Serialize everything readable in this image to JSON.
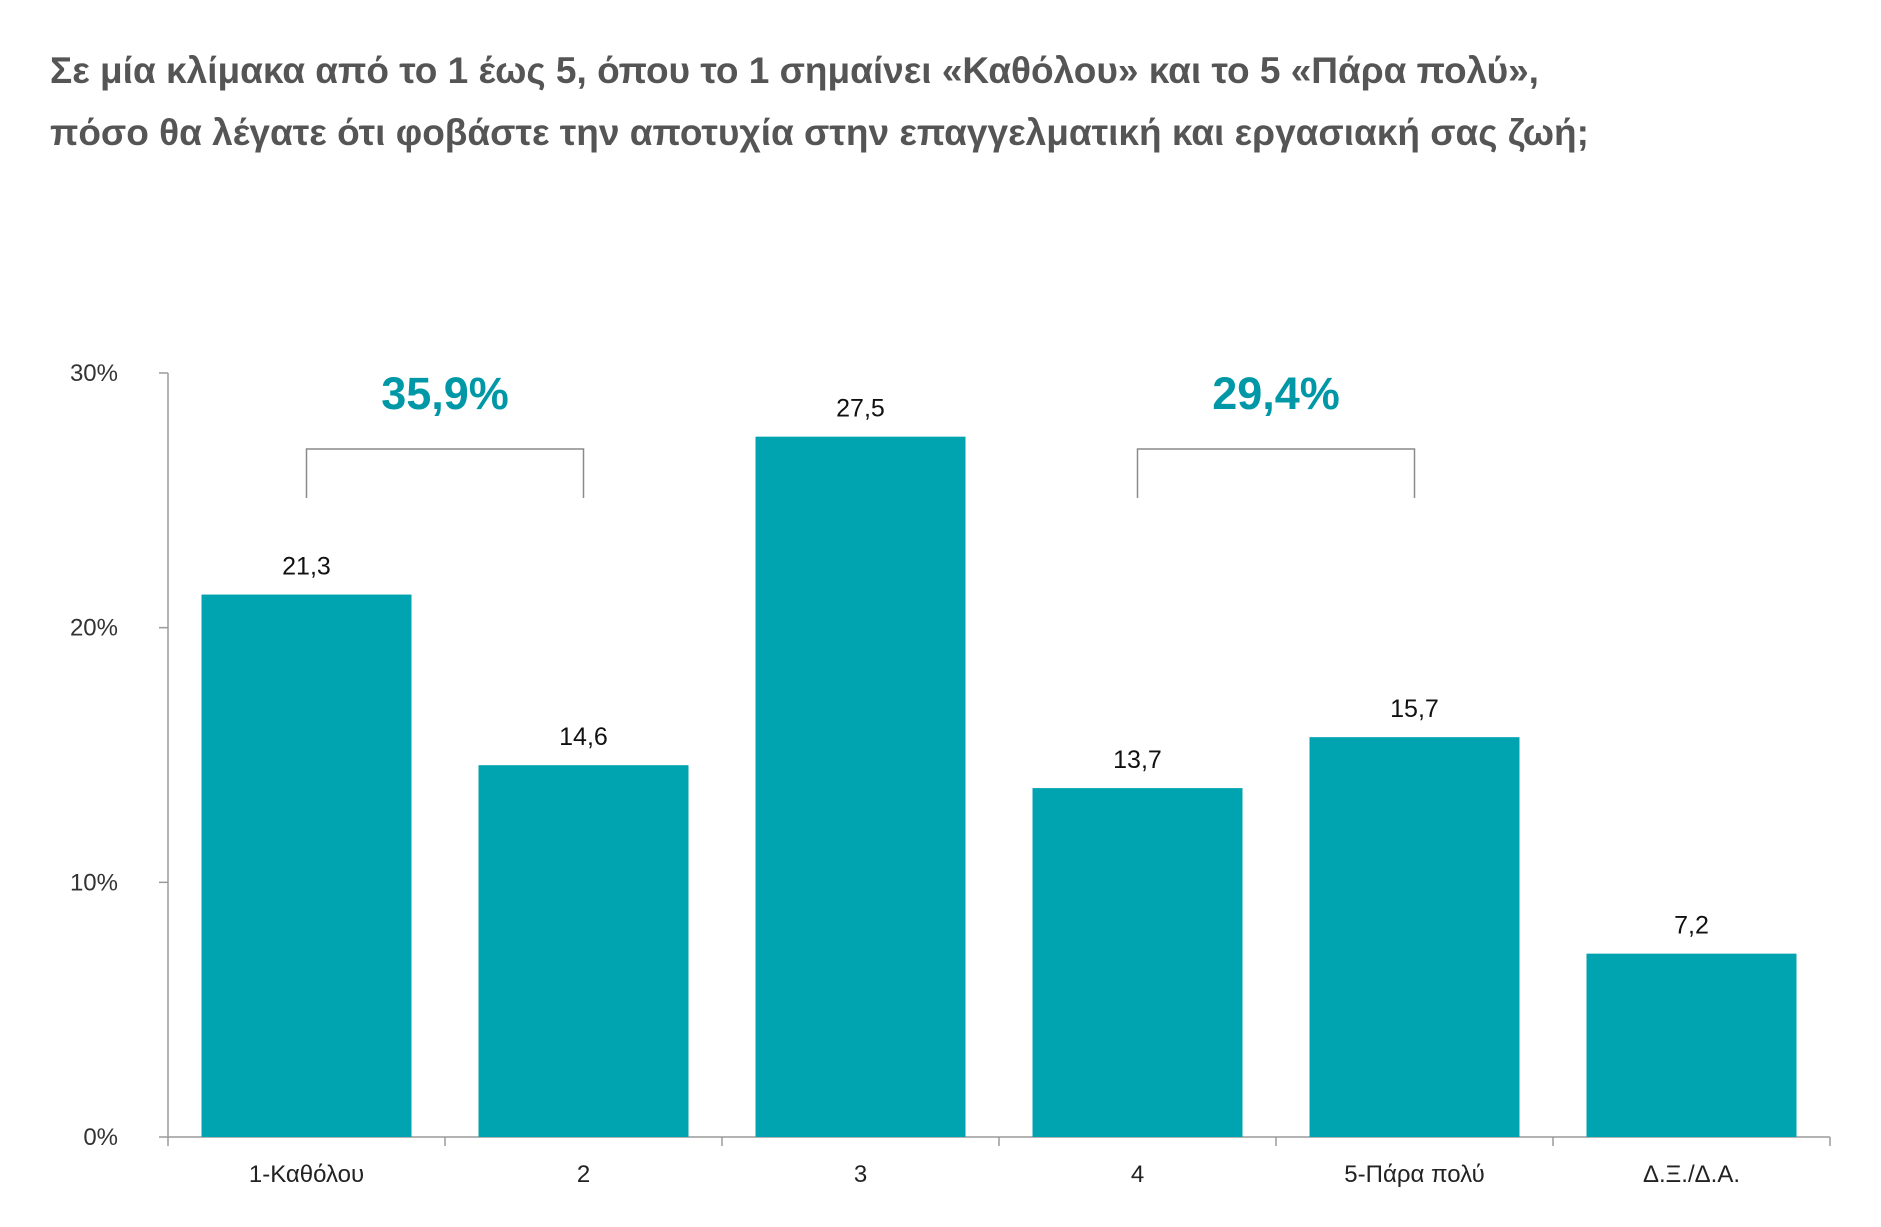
{
  "chart_data": {
    "type": "bar",
    "title": "Σε μία κλίμακα από το 1 έως 5, όπου το 1 σημαίνει «Καθόλου» και το 5 «Πάρα πολύ», πόσο θα λέγατε ότι φοβάστε την αποτυχία στην επαγγελματική και εργασιακή σας ζωή;",
    "xlabel": "",
    "ylabel": "",
    "categories": [
      "1-Καθόλου",
      "2",
      "3",
      "4",
      "5-Πάρα πολύ",
      "Δ.Ξ./Δ.Α."
    ],
    "values": [
      21.3,
      14.6,
      27.5,
      13.7,
      15.7,
      7.2
    ],
    "value_labels": [
      "21,3",
      "14,6",
      "27,5",
      "13,7",
      "15,7",
      "7,2"
    ],
    "ylim": [
      0,
      30
    ],
    "yticks": [
      0,
      10,
      20,
      30
    ],
    "ytick_labels": [
      "0%",
      "10%",
      "20%",
      "30%"
    ],
    "grid": false,
    "bar_color": "#00A3B0",
    "group_annotations": [
      {
        "label": "35,9%",
        "from_index": 0,
        "to_index": 1,
        "color": "#0098A6"
      },
      {
        "label": "29,4%",
        "from_index": 3,
        "to_index": 4,
        "color": "#0098A6"
      }
    ]
  }
}
